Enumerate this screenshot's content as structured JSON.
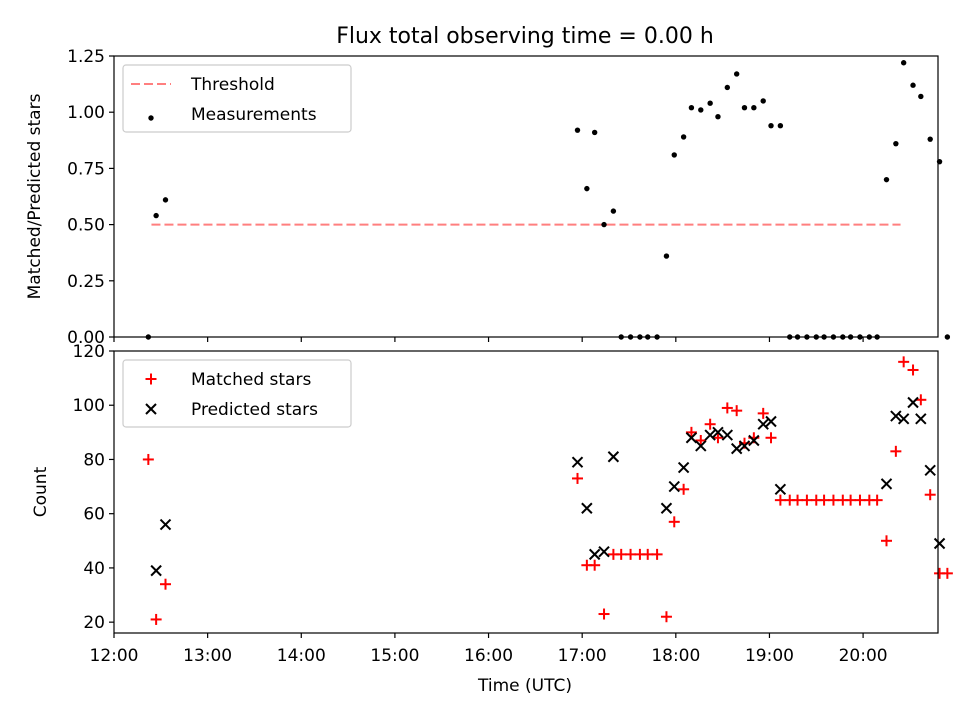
{
  "title": "Flux total observing time = 0.00 h",
  "chart_data": [
    {
      "type": "scatter",
      "ylabel": "Matched/Predicted stars",
      "xlabel": "",
      "xlim": [
        "12:00",
        "20:48"
      ],
      "ylim": [
        0,
        1.25
      ],
      "yticks": [
        "0.00",
        "0.25",
        "0.50",
        "0.75",
        "1.00",
        "1.25"
      ],
      "xticks": [],
      "legend_position": "top-left",
      "series": [
        {
          "name": "Threshold",
          "kind": "dashed-line",
          "color": "#ff7f7f",
          "points": [
            [
              "12:24",
              0.5
            ],
            [
              "20:24",
              0.5
            ]
          ]
        },
        {
          "name": "Measurements",
          "kind": "dot",
          "color": "#000000",
          "points": [
            [
              "12:22",
              0.0
            ],
            [
              "12:27",
              0.54
            ],
            [
              "12:33",
              0.61
            ],
            [
              "16:57",
              0.92
            ],
            [
              "17:03",
              0.66
            ],
            [
              "17:08",
              0.91
            ],
            [
              "17:14",
              0.5
            ],
            [
              "17:20",
              0.56
            ],
            [
              "17:25",
              0.0
            ],
            [
              "17:31",
              0.0
            ],
            [
              "17:37",
              0.0
            ],
            [
              "17:42",
              0.0
            ],
            [
              "17:48",
              0.0
            ],
            [
              "17:54",
              0.36
            ],
            [
              "17:59",
              0.81
            ],
            [
              "18:05",
              0.89
            ],
            [
              "18:10",
              1.02
            ],
            [
              "18:16",
              1.01
            ],
            [
              "18:22",
              1.04
            ],
            [
              "18:27",
              0.98
            ],
            [
              "18:33",
              1.11
            ],
            [
              "18:39",
              1.17
            ],
            [
              "18:44",
              1.02
            ],
            [
              "18:50",
              1.02
            ],
            [
              "18:56",
              1.05
            ],
            [
              "19:01",
              0.94
            ],
            [
              "19:07",
              0.94
            ],
            [
              "19:13",
              0.0
            ],
            [
              "19:18",
              0.0
            ],
            [
              "19:24",
              0.0
            ],
            [
              "19:30",
              0.0
            ],
            [
              "19:35",
              0.0
            ],
            [
              "19:41",
              0.0
            ],
            [
              "19:47",
              0.0
            ],
            [
              "19:52",
              0.0
            ],
            [
              "19:58",
              0.0
            ],
            [
              "20:04",
              0.0
            ],
            [
              "20:09",
              0.0
            ],
            [
              "20:15",
              0.7
            ],
            [
              "20:21",
              0.86
            ],
            [
              "20:26",
              1.22
            ],
            [
              "20:32",
              1.12
            ],
            [
              "20:37",
              1.07
            ],
            [
              "20:43",
              0.88
            ],
            [
              "20:49",
              0.78
            ],
            [
              "20:54",
              0.0
            ]
          ]
        }
      ]
    },
    {
      "type": "scatter",
      "ylabel": "Count",
      "xlabel": "Time (UTC)",
      "xlim": [
        "12:00",
        "20:48"
      ],
      "ylim": [
        16,
        120
      ],
      "yticks": [
        "20",
        "40",
        "60",
        "80",
        "100",
        "120"
      ],
      "xticks": [
        "12:00",
        "13:00",
        "14:00",
        "15:00",
        "16:00",
        "17:00",
        "18:00",
        "19:00",
        "20:00"
      ],
      "legend_position": "top-left",
      "series": [
        {
          "name": "Matched stars",
          "kind": "plus",
          "color": "#ff0000",
          "points": [
            [
              "12:22",
              80
            ],
            [
              "12:27",
              21
            ],
            [
              "12:33",
              34
            ],
            [
              "16:57",
              73
            ],
            [
              "17:03",
              41
            ],
            [
              "17:08",
              41
            ],
            [
              "17:14",
              23
            ],
            [
              "17:20",
              45
            ],
            [
              "17:25",
              45
            ],
            [
              "17:31",
              45
            ],
            [
              "17:37",
              45
            ],
            [
              "17:42",
              45
            ],
            [
              "17:48",
              45
            ],
            [
              "17:54",
              22
            ],
            [
              "17:59",
              57
            ],
            [
              "18:05",
              69
            ],
            [
              "18:10",
              90
            ],
            [
              "18:16",
              87
            ],
            [
              "18:22",
              93
            ],
            [
              "18:27",
              88
            ],
            [
              "18:33",
              99
            ],
            [
              "18:39",
              98
            ],
            [
              "18:44",
              86
            ],
            [
              "18:50",
              88
            ],
            [
              "18:56",
              97
            ],
            [
              "19:01",
              88
            ],
            [
              "19:07",
              65
            ],
            [
              "19:13",
              65
            ],
            [
              "19:18",
              65
            ],
            [
              "19:24",
              65
            ],
            [
              "19:30",
              65
            ],
            [
              "19:35",
              65
            ],
            [
              "19:41",
              65
            ],
            [
              "19:47",
              65
            ],
            [
              "19:52",
              65
            ],
            [
              "19:58",
              65
            ],
            [
              "20:04",
              65
            ],
            [
              "20:09",
              65
            ],
            [
              "20:15",
              50
            ],
            [
              "20:21",
              83
            ],
            [
              "20:26",
              116
            ],
            [
              "20:32",
              113
            ],
            [
              "20:37",
              102
            ],
            [
              "20:43",
              67
            ],
            [
              "20:49",
              38
            ],
            [
              "20:54",
              38
            ]
          ]
        },
        {
          "name": "Predicted stars",
          "kind": "x",
          "color": "#000000",
          "points": [
            [
              "12:27",
              39
            ],
            [
              "12:33",
              56
            ],
            [
              "16:57",
              79
            ],
            [
              "17:03",
              62
            ],
            [
              "17:08",
              45
            ],
            [
              "17:14",
              46
            ],
            [
              "17:20",
              81
            ],
            [
              "17:54",
              62
            ],
            [
              "17:59",
              70
            ],
            [
              "18:05",
              77
            ],
            [
              "18:10",
              88
            ],
            [
              "18:16",
              85
            ],
            [
              "18:22",
              89
            ],
            [
              "18:27",
              90
            ],
            [
              "18:33",
              89
            ],
            [
              "18:39",
              84
            ],
            [
              "18:44",
              85
            ],
            [
              "18:50",
              87
            ],
            [
              "18:56",
              93
            ],
            [
              "19:01",
              94
            ],
            [
              "19:07",
              69
            ],
            [
              "20:15",
              71
            ],
            [
              "20:21",
              96
            ],
            [
              "20:26",
              95
            ],
            [
              "20:32",
              101
            ],
            [
              "20:37",
              95
            ],
            [
              "20:43",
              76
            ],
            [
              "20:49",
              49
            ]
          ]
        }
      ]
    }
  ]
}
